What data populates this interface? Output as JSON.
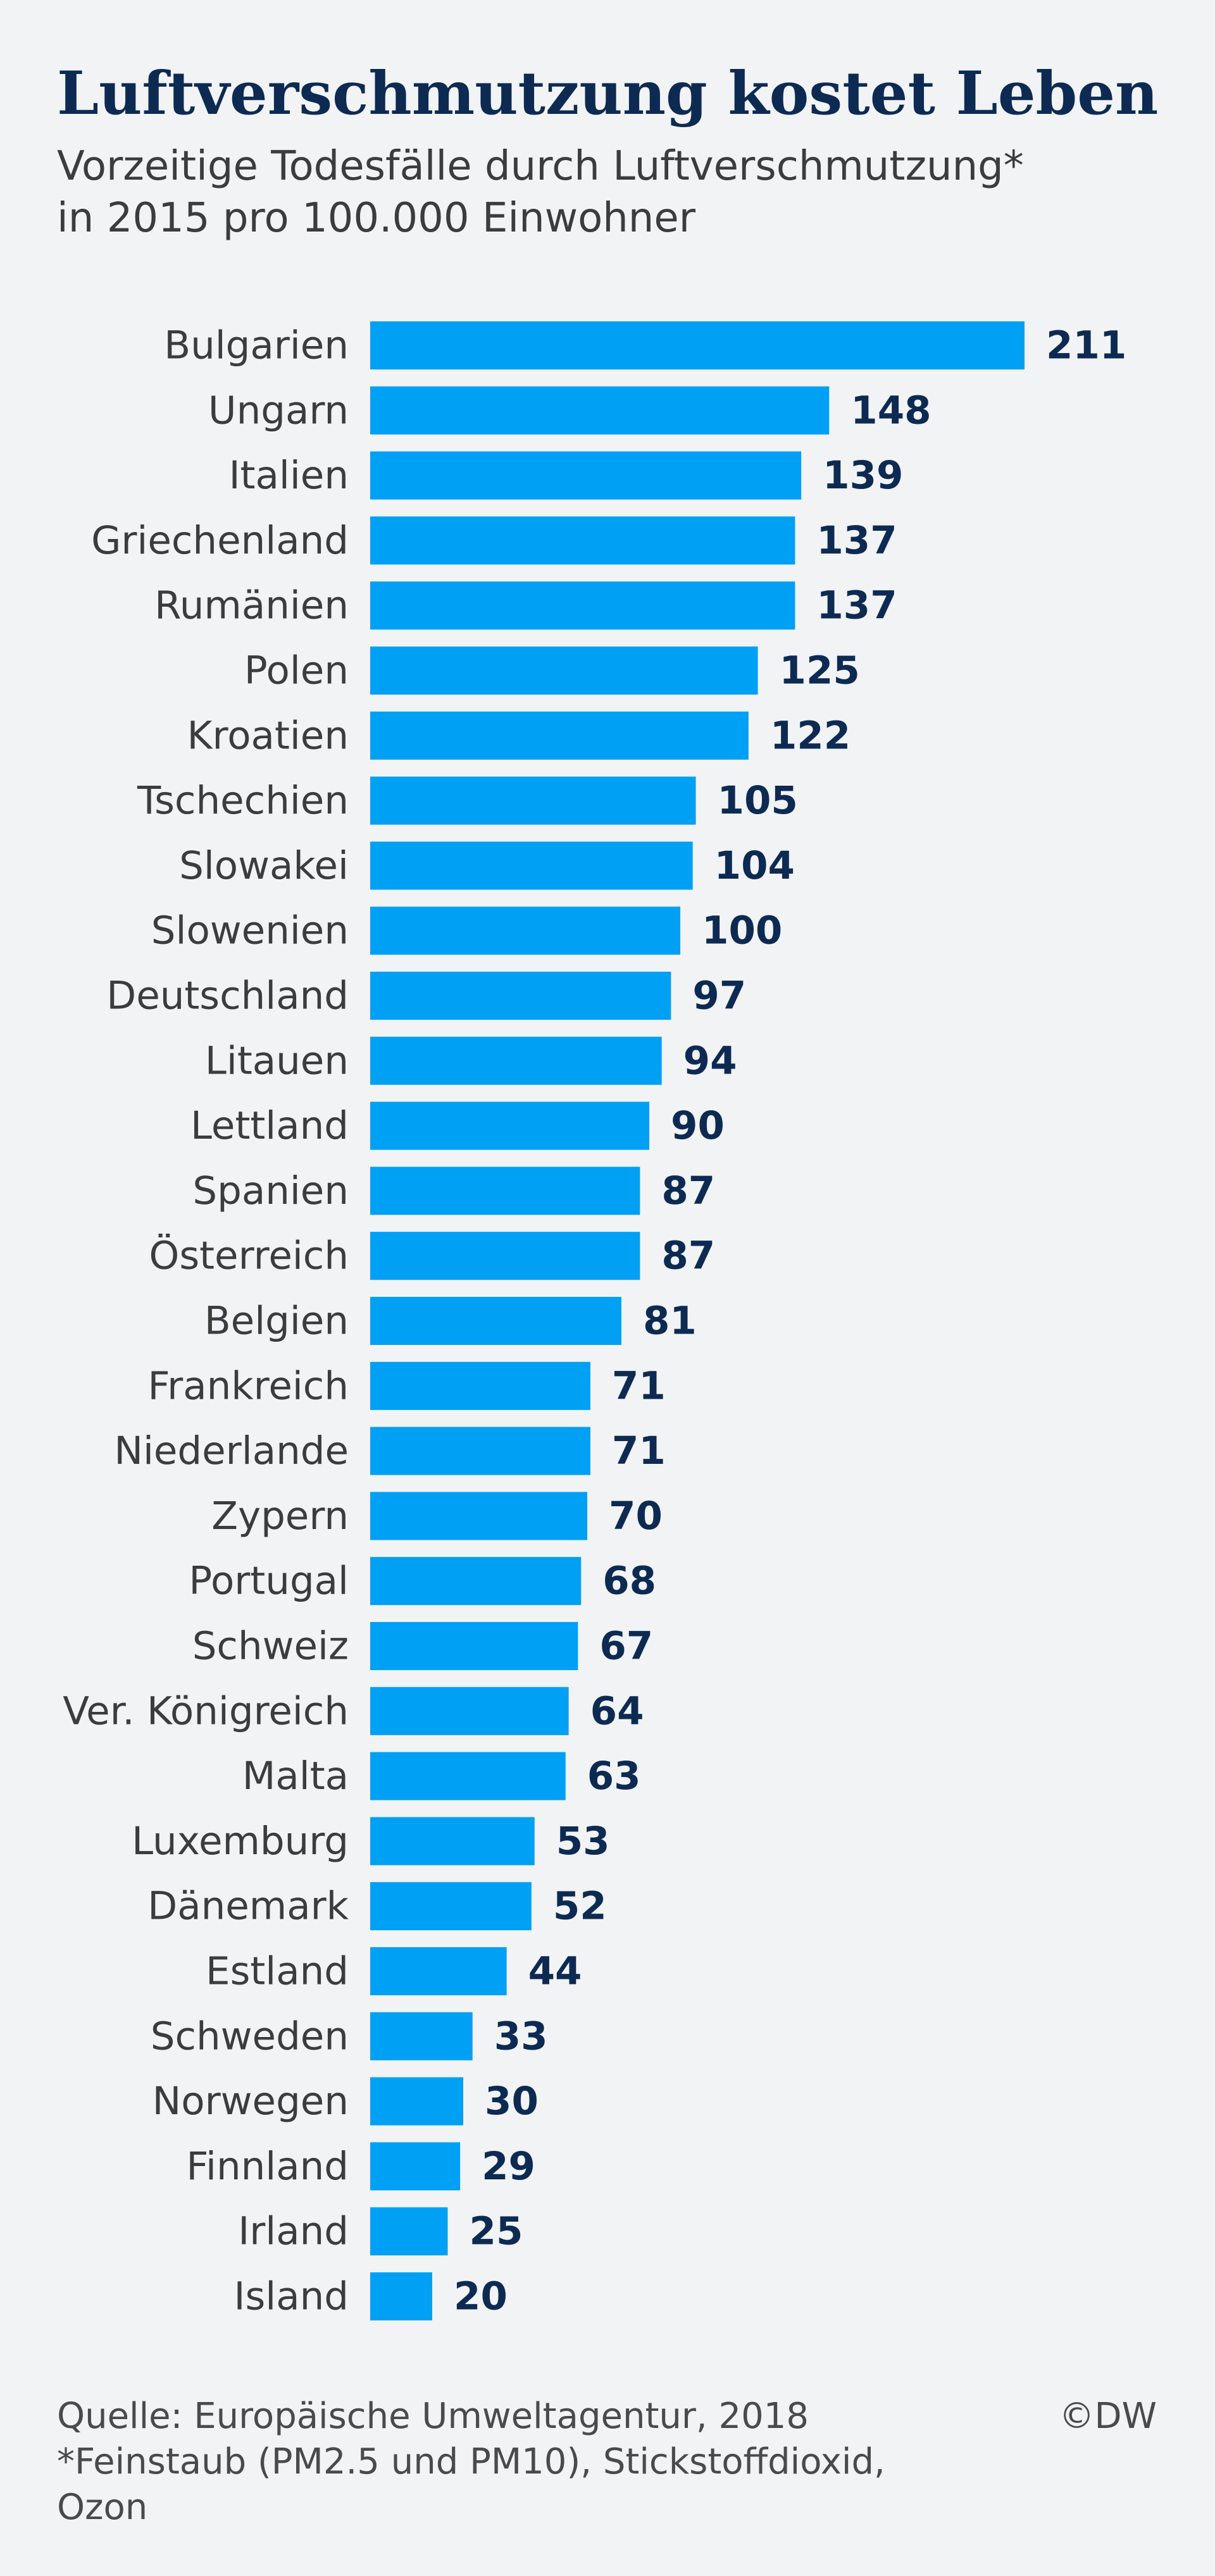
{
  "header": {
    "title": "Luftverschmutzung kostet Leben",
    "subtitle_line1": "Vorzeitige Todesfälle durch Luftverschmutzung*",
    "subtitle_line2": "in 2015 pro 100.000 Einwohner"
  },
  "footer": {
    "source_line1": "Quelle: Europäische Umweltagentur, 2018",
    "source_line2": "*Feinstaub (PM2.5 und PM10), Stickstoffdioxid,",
    "source_line3": "Ozon",
    "credit": "©DW"
  },
  "colors": {
    "bar": "#00a0f5",
    "title": "#0d2a52",
    "background": "#f1f3f5"
  },
  "chart_data": {
    "type": "bar",
    "orientation": "horizontal",
    "title": "Luftverschmutzung kostet Leben",
    "subtitle": "Vorzeitige Todesfälle durch Luftverschmutzung* in 2015 pro 100.000 Einwohner",
    "categories": [
      "Bulgarien",
      "Ungarn",
      "Italien",
      "Griechenland",
      "Rumänien",
      "Polen",
      "Kroatien",
      "Tschechien",
      "Slowakei",
      "Slowenien",
      "Deutschland",
      "Litauen",
      "Lettland",
      "Spanien",
      "Österreich",
      "Belgien",
      "Frankreich",
      "Niederlande",
      "Zypern",
      "Portugal",
      "Schweiz",
      "Ver. Königreich",
      "Malta",
      "Luxemburg",
      "Dänemark",
      "Estland",
      "Schweden",
      "Norwegen",
      "Finnland",
      "Irland",
      "Island"
    ],
    "values": [
      211,
      148,
      139,
      137,
      137,
      125,
      122,
      105,
      104,
      100,
      97,
      94,
      90,
      87,
      87,
      81,
      71,
      71,
      70,
      68,
      67,
      64,
      63,
      53,
      52,
      44,
      33,
      30,
      29,
      25,
      20
    ],
    "xlim": [
      0,
      211
    ],
    "grid": false,
    "legend": "none",
    "data_labels": true
  }
}
